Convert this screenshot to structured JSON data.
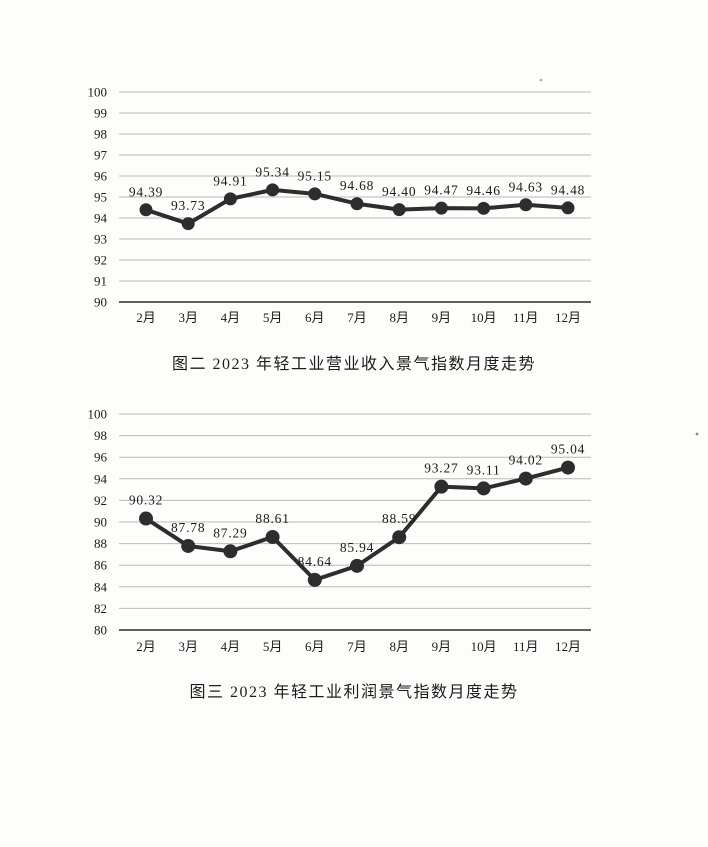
{
  "page": {
    "background_color": "#fdfdfc",
    "line_color": "#2d2d2d",
    "grid_color": "#b9b9b9",
    "axis_color": "#4a4a4a",
    "text_color": "#1c1c1c"
  },
  "chart_data": [
    {
      "type": "line",
      "title": "图二 2023 年轻工业营业收入景气指数月度走势",
      "caption": "图二  2023 年轻工业营业收入景气指数月度走势",
      "categories": [
        "2月",
        "3月",
        "4月",
        "5月",
        "6月",
        "7月",
        "8月",
        "9月",
        "10月",
        "11月",
        "12月"
      ],
      "values": [
        94.39,
        93.73,
        94.91,
        95.34,
        95.15,
        94.68,
        94.4,
        94.47,
        94.46,
        94.63,
        94.48
      ],
      "point_labels": [
        "94.39",
        "93.73",
        "94.91",
        "95.34",
        "95.15",
        "94.68",
        "94.40",
        "94.47",
        "94.46",
        "94.63",
        "94.48"
      ],
      "ylim": [
        90,
        100
      ],
      "ytick_step": 1,
      "ytick_labels": [
        "90",
        "91",
        "92",
        "93",
        "94",
        "95",
        "96",
        "97",
        "98",
        "99",
        "100"
      ],
      "grid": "horizontal",
      "legend": "none",
      "xlabel": "",
      "ylabel": ""
    },
    {
      "type": "line",
      "title": "图三 2023 年轻工业利润景气指数月度走势",
      "caption": "图三  2023 年轻工业利润景气指数月度走势",
      "categories": [
        "2月",
        "3月",
        "4月",
        "5月",
        "6月",
        "7月",
        "8月",
        "9月",
        "10月",
        "11月",
        "12月"
      ],
      "values": [
        90.32,
        87.78,
        87.29,
        88.61,
        84.64,
        85.94,
        88.59,
        93.27,
        93.11,
        94.02,
        95.04
      ],
      "point_labels": [
        "90.32",
        "87.78",
        "87.29",
        "88.61",
        "84.64",
        "85.94",
        "88.59",
        "93.27",
        "93.11",
        "94.02",
        "95.04"
      ],
      "ylim": [
        80,
        100
      ],
      "ytick_step": 2,
      "ytick_labels": [
        "80",
        "82",
        "84",
        "86",
        "88",
        "90",
        "92",
        "94",
        "96",
        "98",
        "100"
      ],
      "grid": "horizontal",
      "legend": "none",
      "xlabel": "",
      "ylabel": ""
    }
  ]
}
